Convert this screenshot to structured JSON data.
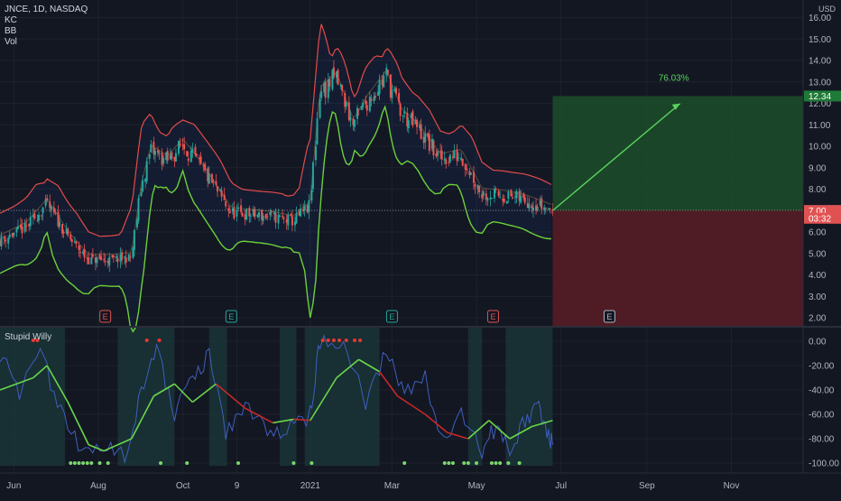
{
  "header": {
    "symbol_line": "JNCE, 1D, NASDAQ",
    "indicators": [
      "KC",
      "BB",
      "Vol"
    ],
    "currency": "USD"
  },
  "colors": {
    "background": "#131722",
    "grid": "#1e222d",
    "candle_up": "#26a69a",
    "candle_down": "#ef5350",
    "keltner_upper": "#e24b4b",
    "bollinger_lower": "#6bd13a",
    "target_zone": "#1d4d2a",
    "stop_zone": "#5a1c24",
    "arrow": "#57d45d",
    "oscillator_fast": "#3f5fbf",
    "oscillator_slow_up": "#69d64a",
    "oscillator_slow_down": "#c62828",
    "signal_dots": "#7bd66b",
    "signal_dots_top": "#e53935",
    "bg_highlight": "#1b3a3a"
  },
  "chart_data": [
    {
      "type": "candlestick",
      "title": "JNCE, 1D, NASDAQ",
      "x_ticks": [
        "Jun",
        "Aug",
        "Oct",
        "9",
        "2021",
        "Mar",
        "May",
        "Jul",
        "Sep",
        "Nov"
      ],
      "y_ticks": [
        "16.00",
        "15.00",
        "14.00",
        "13.00",
        "12.00",
        "11.00",
        "10.00",
        "9.00",
        "8.00",
        "7.00",
        "6.00",
        "5.00",
        "4.00",
        "3.00",
        "2.00"
      ],
      "ylim": [
        2,
        16
      ],
      "close_path": [
        {
          "date": "2020-05-22",
          "close": 5.6
        },
        {
          "date": "2020-06-10",
          "close": 6.2
        },
        {
          "date": "2020-06-25",
          "close": 7.3
        },
        {
          "date": "2020-07-10",
          "close": 5.8
        },
        {
          "date": "2020-07-25",
          "close": 4.7
        },
        {
          "date": "2020-08-10",
          "close": 4.7
        },
        {
          "date": "2020-08-25",
          "close": 4.8
        },
        {
          "date": "2020-09-01",
          "close": 8.0
        },
        {
          "date": "2020-09-08",
          "close": 9.8
        },
        {
          "date": "2020-09-20",
          "close": 9.3
        },
        {
          "date": "2020-10-01",
          "close": 10.1
        },
        {
          "date": "2020-10-12",
          "close": 9.2
        },
        {
          "date": "2020-10-25",
          "close": 8.0
        },
        {
          "date": "2020-11-05",
          "close": 6.9
        },
        {
          "date": "2020-11-20",
          "close": 6.8
        },
        {
          "date": "2020-12-05",
          "close": 6.7
        },
        {
          "date": "2020-12-20",
          "close": 6.5
        },
        {
          "date": "2021-01-01",
          "close": 7.2
        },
        {
          "date": "2021-01-08",
          "close": 12.5
        },
        {
          "date": "2021-01-20",
          "close": 13.2
        },
        {
          "date": "2021-02-01",
          "close": 11.0
        },
        {
          "date": "2021-02-12",
          "close": 12.2
        },
        {
          "date": "2021-02-25",
          "close": 13.3
        },
        {
          "date": "2021-03-08",
          "close": 11.5
        },
        {
          "date": "2021-03-20",
          "close": 10.8
        },
        {
          "date": "2021-04-05",
          "close": 9.4
        },
        {
          "date": "2021-04-20",
          "close": 9.6
        },
        {
          "date": "2021-05-05",
          "close": 7.8
        },
        {
          "date": "2021-05-20",
          "close": 7.7
        },
        {
          "date": "2021-06-05",
          "close": 7.5
        },
        {
          "date": "2021-06-25",
          "close": 7.01
        }
      ],
      "price_labels": [
        {
          "text": "12.34",
          "value": 12.34,
          "color": "#1e7a36"
        },
        {
          "text": "7.01",
          "value": 7.01,
          "color": "#4a4e58"
        },
        {
          "text": "7.00",
          "value": 7.0,
          "color": "#e05252"
        },
        {
          "text": "03:32",
          "value": 6.64,
          "color": "#e05252"
        }
      ],
      "position": {
        "entry": 7.0,
        "target": 12.34,
        "stop": 2.0,
        "label": "76.03%",
        "from_date": "2021-06-25",
        "to_date": "2021-09-25"
      },
      "event_markers": [
        {
          "date": "2020-08-06",
          "text": "E",
          "color": "#e05252"
        },
        {
          "date": "2020-11-05",
          "text": "E",
          "color": "#26a69a"
        },
        {
          "date": "2021-03-01",
          "text": "E",
          "color": "#26a69a"
        },
        {
          "date": "2021-05-13",
          "text": "E",
          "color": "#e05252"
        },
        {
          "date": "2021-08-05",
          "text": "E",
          "color": "#b2b5be"
        }
      ]
    },
    {
      "type": "line",
      "title": "Stupid Willy",
      "y_ticks": [
        "0.00",
        "-20.00",
        "-40.00",
        "-60.00",
        "-80.00",
        "-100.00"
      ],
      "ylim": [
        -105,
        5
      ],
      "series": [
        {
          "color": "#3f5fbf",
          "points": [
            {
              "date": "2020-05-22",
              "value": -10
            },
            {
              "date": "2020-06-05",
              "value": -45
            },
            {
              "date": "2020-06-20",
              "value": -10
            },
            {
              "date": "2020-07-05",
              "value": -55
            },
            {
              "date": "2020-07-20",
              "value": -90
            },
            {
              "date": "2020-08-05",
              "value": -85
            },
            {
              "date": "2020-08-20",
              "value": -95
            },
            {
              "date": "2020-09-01",
              "value": -40
            },
            {
              "date": "2020-09-12",
              "value": -5
            },
            {
              "date": "2020-09-25",
              "value": -60
            },
            {
              "date": "2020-10-08",
              "value": -30
            },
            {
              "date": "2020-10-20",
              "value": -10
            },
            {
              "date": "2020-11-01",
              "value": -75
            },
            {
              "date": "2020-11-15",
              "value": -55
            },
            {
              "date": "2020-12-01",
              "value": -75
            },
            {
              "date": "2020-12-15",
              "value": -70
            },
            {
              "date": "2021-01-01",
              "value": -60
            },
            {
              "date": "2021-01-08",
              "value": 0
            },
            {
              "date": "2021-01-25",
              "value": -2
            },
            {
              "date": "2021-02-10",
              "value": -50
            },
            {
              "date": "2021-02-25",
              "value": -10
            },
            {
              "date": "2021-03-10",
              "value": -40
            },
            {
              "date": "2021-03-25",
              "value": -30
            },
            {
              "date": "2021-04-05",
              "value": -80
            },
            {
              "date": "2021-04-20",
              "value": -60
            },
            {
              "date": "2021-05-05",
              "value": -90
            },
            {
              "date": "2021-05-15",
              "value": -70
            },
            {
              "date": "2021-05-25",
              "value": -90
            },
            {
              "date": "2021-06-05",
              "value": -65
            },
            {
              "date": "2021-06-15",
              "value": -55
            },
            {
              "date": "2021-06-22",
              "value": -75
            },
            {
              "date": "2021-06-25",
              "value": -85
            }
          ]
        },
        {
          "color": "#69d64a",
          "alt_color": "#c62828",
          "points": [
            {
              "date": "2020-05-22",
              "value": -40
            },
            {
              "date": "2020-06-15",
              "value": -30
            },
            {
              "date": "2020-06-25",
              "value": -20
            },
            {
              "date": "2020-07-10",
              "value": -50
            },
            {
              "date": "2020-07-25",
              "value": -85
            },
            {
              "date": "2020-08-05",
              "value": -90
            },
            {
              "date": "2020-08-25",
              "value": -80
            },
            {
              "date": "2020-09-10",
              "value": -45
            },
            {
              "date": "2020-09-25",
              "value": -35
            },
            {
              "date": "2020-10-08",
              "value": -50
            },
            {
              "date": "2020-10-25",
              "value": -35
            },
            {
              "date": "2020-11-15",
              "value": -55
            },
            {
              "date": "2020-12-05",
              "value": -67
            },
            {
              "date": "2020-12-20",
              "value": -64
            },
            {
              "date": "2021-01-01",
              "value": -65
            },
            {
              "date": "2021-01-20",
              "value": -30
            },
            {
              "date": "2021-02-05",
              "value": -15
            },
            {
              "date": "2021-02-20",
              "value": -25
            },
            {
              "date": "2021-03-05",
              "value": -45
            },
            {
              "date": "2021-03-25",
              "value": -60
            },
            {
              "date": "2021-04-10",
              "value": -75
            },
            {
              "date": "2021-04-25",
              "value": -80
            },
            {
              "date": "2021-05-10",
              "value": -65
            },
            {
              "date": "2021-05-25",
              "value": -80
            },
            {
              "date": "2021-06-10",
              "value": -70
            },
            {
              "date": "2021-06-25",
              "value": -65
            }
          ]
        }
      ]
    }
  ]
}
